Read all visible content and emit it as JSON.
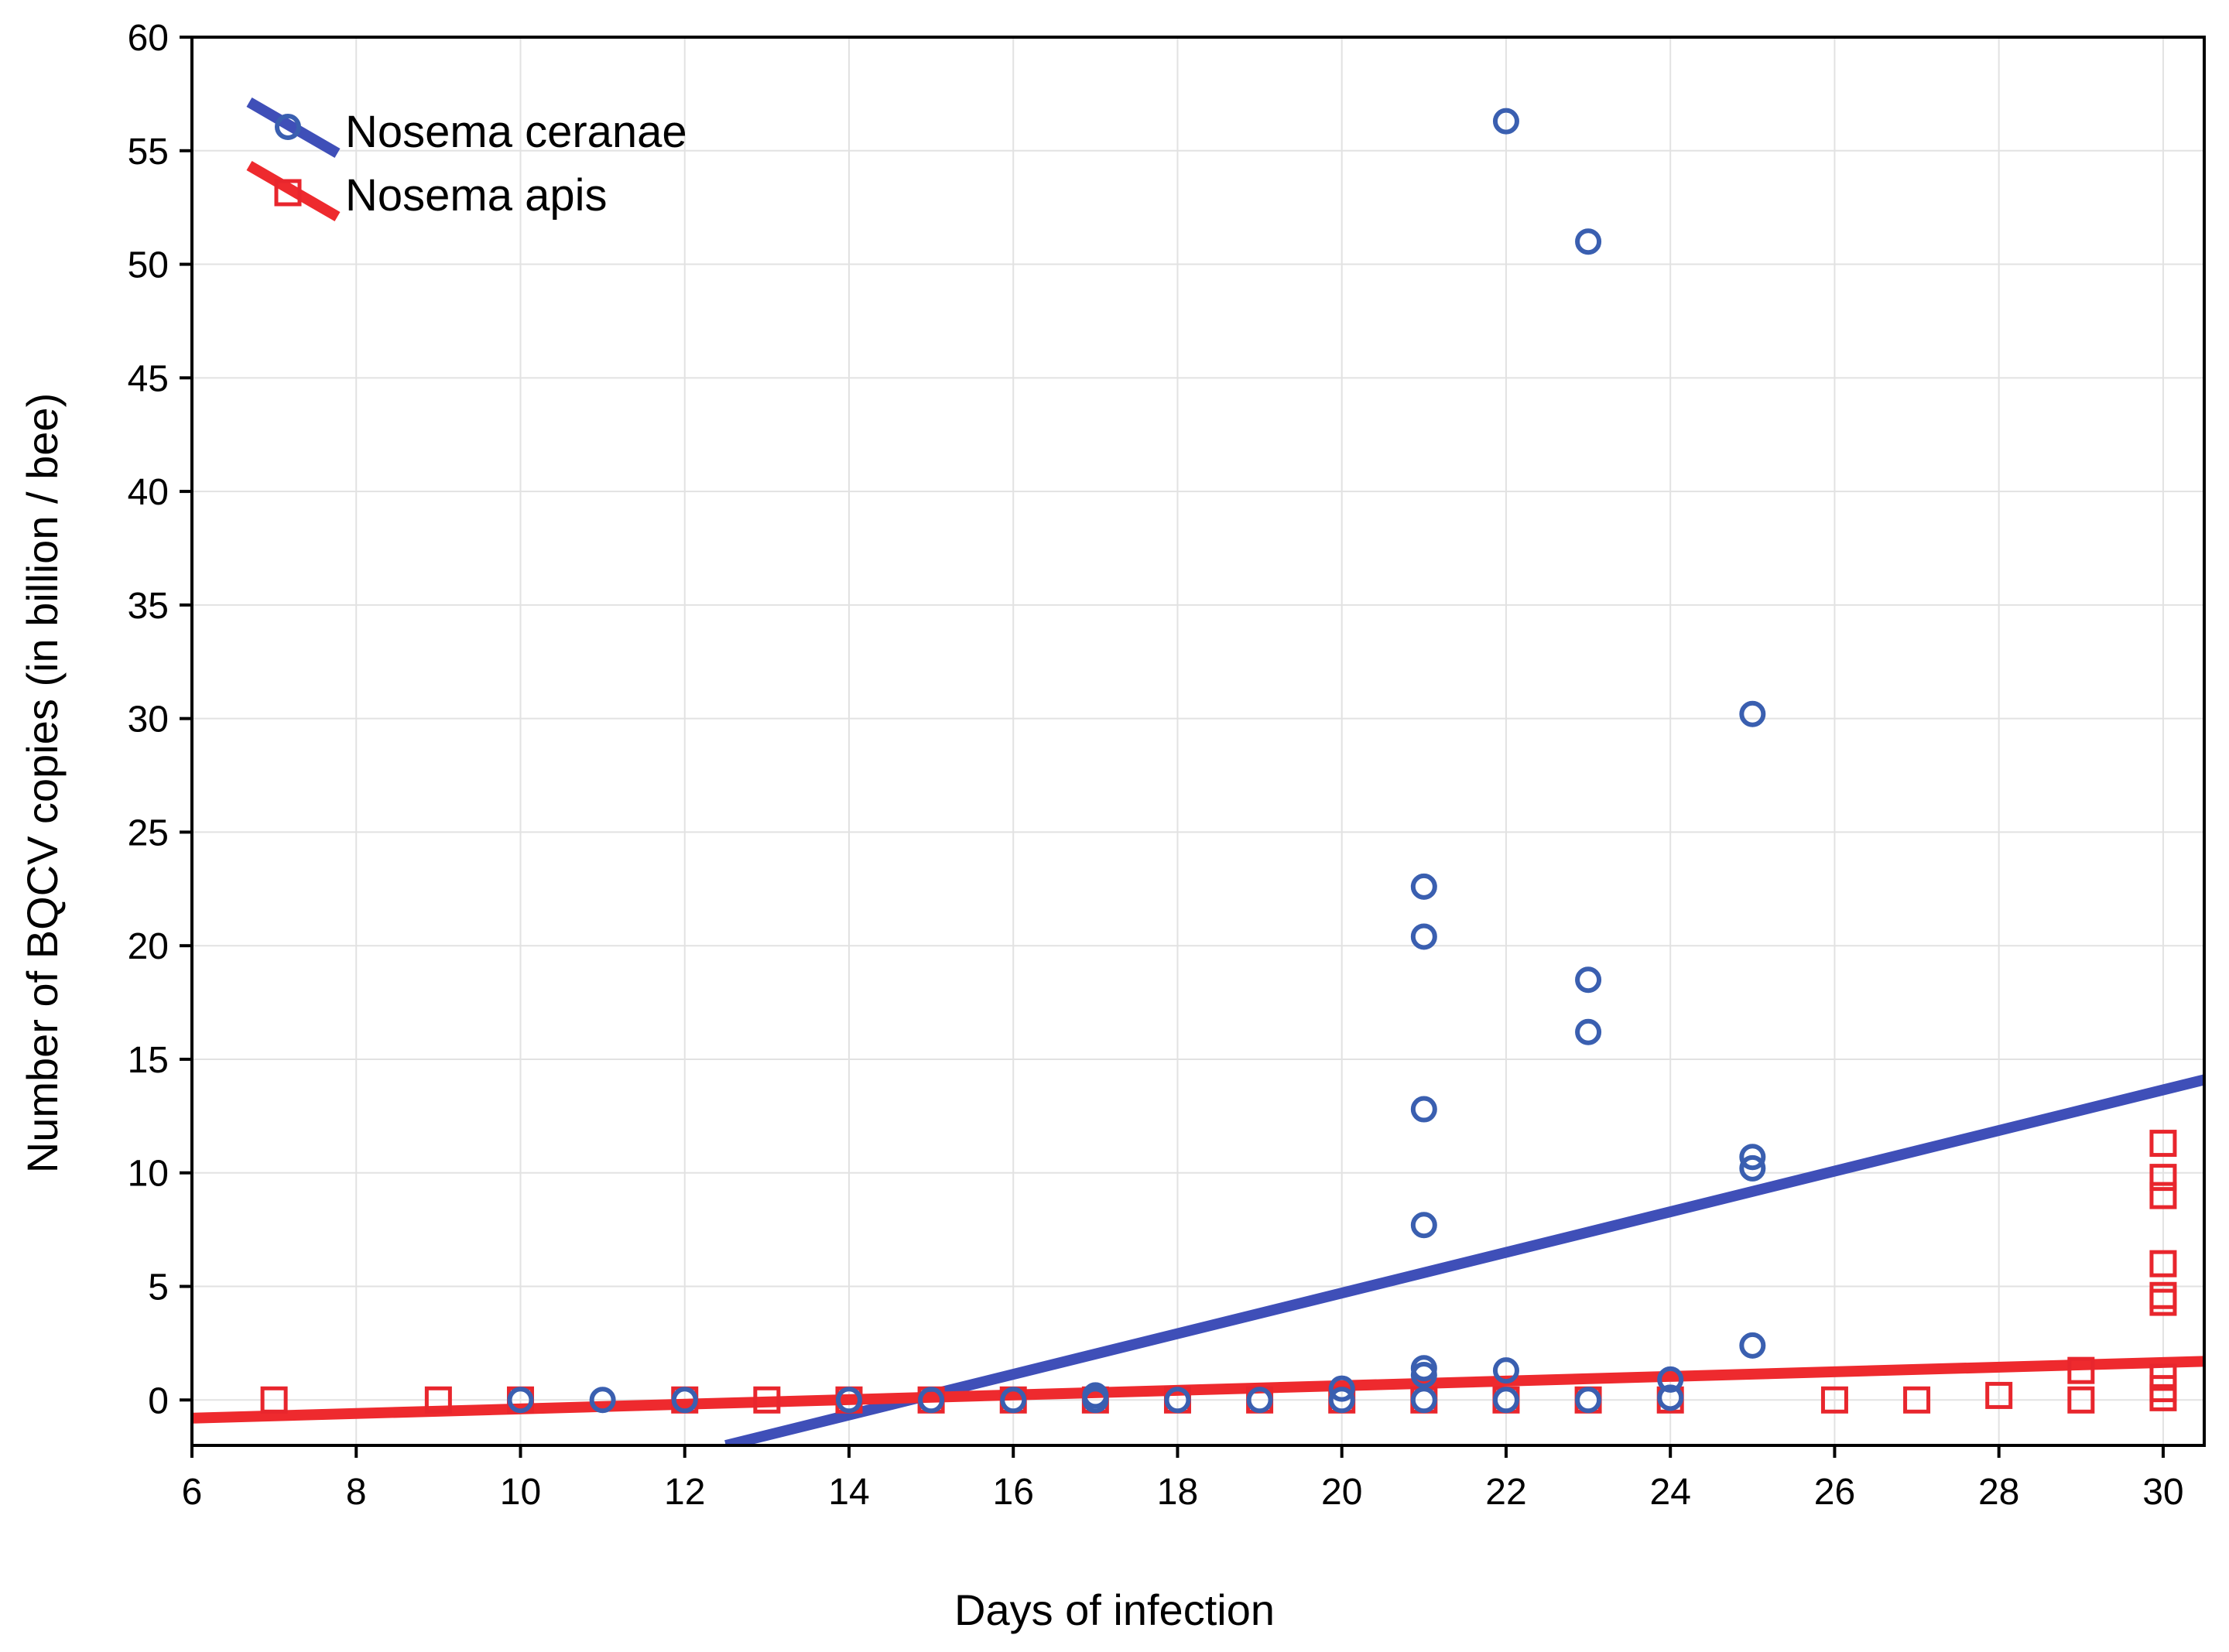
{
  "chart_data": {
    "type": "scatter",
    "title": "",
    "xlabel": "Days of infection",
    "ylabel": "Number of BQCV copies (in billion / bee)",
    "xlim": [
      6,
      30.5
    ],
    "ylim": [
      -2,
      60
    ],
    "x_ticks": [
      6,
      8,
      10,
      12,
      14,
      16,
      18,
      20,
      22,
      24,
      26,
      28,
      30
    ],
    "y_ticks": [
      0,
      5,
      10,
      15,
      20,
      25,
      30,
      35,
      40,
      45,
      50,
      55,
      60
    ],
    "x_tick_labels": [
      "6",
      "8",
      "10",
      "12",
      "14",
      "16",
      "18",
      "20",
      "22",
      "24",
      "26",
      "28",
      "30"
    ],
    "y_tick_labels": [
      "0",
      "5",
      "10",
      "15",
      "20",
      "25",
      "30",
      "35",
      "40",
      "45",
      "50",
      "55",
      "60"
    ],
    "grid": true,
    "legend_position": "top-left",
    "series": [
      {
        "name": "Nosema ceranae",
        "color": "#3a5fb0",
        "line_color": "#3f4fb8",
        "marker": "circle",
        "points": [
          [
            10,
            0.0
          ],
          [
            11,
            0.0
          ],
          [
            12,
            0.0
          ],
          [
            14,
            0.0
          ],
          [
            15,
            0.0
          ],
          [
            16,
            0.0
          ],
          [
            17,
            0.2
          ],
          [
            17,
            0.0
          ],
          [
            18,
            0.0
          ],
          [
            19,
            0.0
          ],
          [
            20,
            0.5
          ],
          [
            20,
            0.0
          ],
          [
            21,
            22.6
          ],
          [
            21,
            20.4
          ],
          [
            21,
            12.8
          ],
          [
            21,
            7.7
          ],
          [
            21,
            1.4
          ],
          [
            21,
            1.1
          ],
          [
            21,
            0.0
          ],
          [
            22,
            56.3
          ],
          [
            22,
            1.3
          ],
          [
            22,
            0.0
          ],
          [
            23,
            51.0
          ],
          [
            23,
            18.5
          ],
          [
            23,
            16.2
          ],
          [
            23,
            0.0
          ],
          [
            24,
            0.9
          ],
          [
            24,
            0.1
          ],
          [
            25,
            30.2
          ],
          [
            25,
            10.7
          ],
          [
            25,
            10.2
          ],
          [
            25,
            2.4
          ]
        ],
        "trend": {
          "x": [
            12.5,
            30.5
          ],
          "y": [
            -2.0,
            14.1
          ]
        }
      },
      {
        "name": "Nosema apis",
        "color": "#e8262d",
        "line_color": "#ee2a2e",
        "marker": "square",
        "points": [
          [
            7,
            0.0
          ],
          [
            9,
            0.0
          ],
          [
            10,
            0.0
          ],
          [
            12,
            0.0
          ],
          [
            13,
            0.0
          ],
          [
            14,
            0.0
          ],
          [
            15,
            0.0
          ],
          [
            16,
            0.0
          ],
          [
            17,
            0.0
          ],
          [
            18,
            0.0
          ],
          [
            19,
            0.0
          ],
          [
            20,
            0.0
          ],
          [
            21,
            0.0
          ],
          [
            22,
            0.0
          ],
          [
            23,
            0.0
          ],
          [
            24,
            0.0
          ],
          [
            26,
            0.0
          ],
          [
            27,
            0.0
          ],
          [
            28,
            0.2
          ],
          [
            29,
            1.3
          ],
          [
            29,
            0.0
          ],
          [
            30,
            11.3
          ],
          [
            30,
            9.8
          ],
          [
            30,
            9.0
          ],
          [
            30,
            6.0
          ],
          [
            30,
            4.6
          ],
          [
            30,
            4.3
          ],
          [
            30,
            1.0
          ],
          [
            30,
            0.5
          ],
          [
            30,
            0.1
          ]
        ],
        "trend": {
          "x": [
            6,
            30.5
          ],
          "y": [
            -0.8,
            1.7
          ]
        }
      }
    ]
  }
}
